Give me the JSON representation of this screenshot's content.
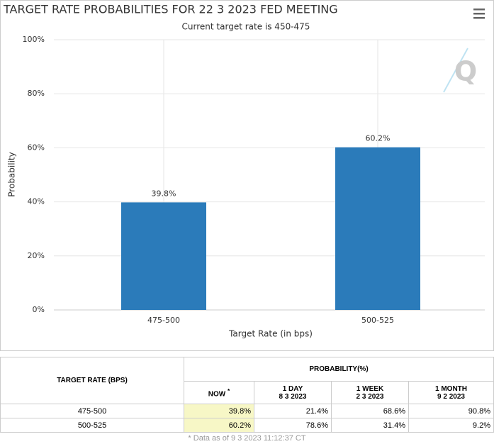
{
  "chart_data": {
    "type": "bar",
    "title": "TARGET RATE PROBABILITIES FOR 22 3 2023 FED MEETING",
    "subtitle": "Current target rate is 450-475",
    "x_label": "Target Rate (in bps)",
    "y_label": "Probability",
    "categories": [
      "475-500",
      "500-525"
    ],
    "values": [
      39.8,
      60.2
    ],
    "value_labels": [
      "39.8%",
      "60.2%"
    ],
    "color": "#2b7bba",
    "ylim": [
      0,
      100
    ],
    "yticks": [
      {
        "value": 0,
        "label": "0%"
      },
      {
        "value": 20,
        "label": "20%"
      },
      {
        "value": 40,
        "label": "40%"
      },
      {
        "value": 60,
        "label": "60%"
      },
      {
        "value": 80,
        "label": "80%"
      },
      {
        "value": 100,
        "label": "100%"
      }
    ],
    "grid": true
  },
  "table": {
    "header": {
      "target_rate": "TARGET RATE (BPS)",
      "probability": "PROBABILITY(%)",
      "now": "NOW",
      "now_note": "*",
      "day": "1 DAY",
      "day_date": "8 3 2023",
      "week": "1 WEEK",
      "week_date": "2 3 2023",
      "month": "1 MONTH",
      "month_date": "9 2 2023"
    },
    "rows": [
      [
        "475-500",
        "39.8%",
        "21.4%",
        "68.6%",
        "90.8%"
      ],
      [
        "500-525",
        "60.2%",
        "78.6%",
        "31.4%",
        "9.2%"
      ]
    ],
    "footnote": "* Data as of 9 3 2023 11:12:37 CT"
  }
}
